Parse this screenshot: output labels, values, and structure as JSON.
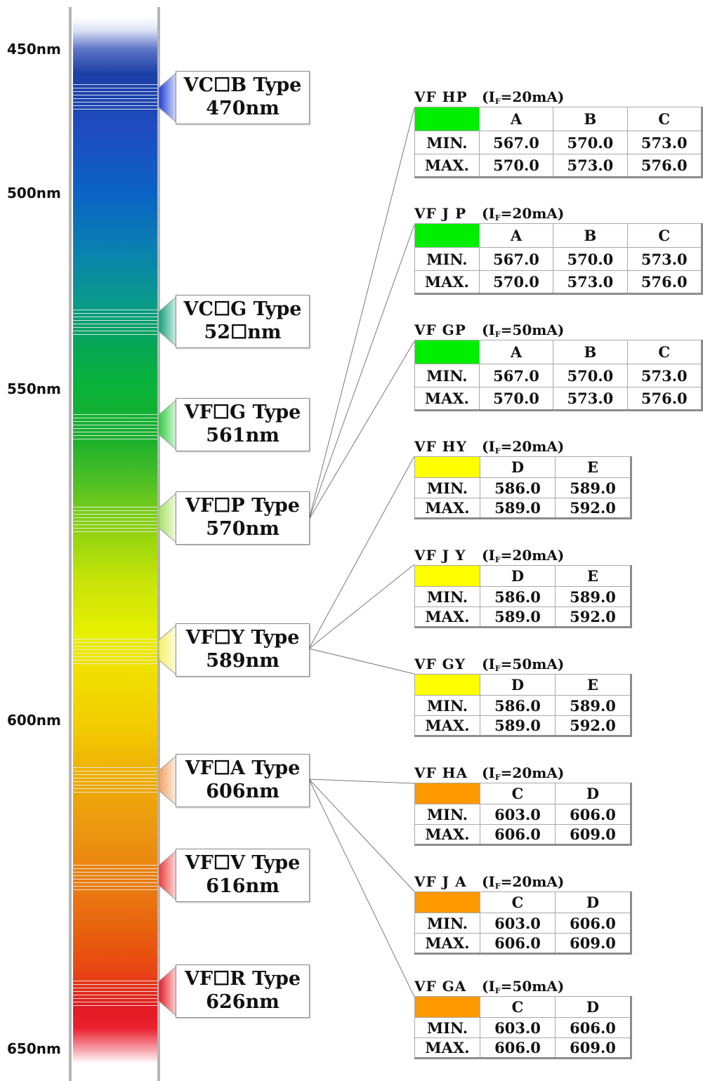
{
  "scale_labels": [
    "450nm",
    "500nm",
    "550nm",
    "600nm",
    "650nm"
  ],
  "types": [
    {
      "line1": "VC☐B Type",
      "line2": "470nm",
      "color": "#1f3fd8"
    },
    {
      "line1": "VC☐G Type",
      "line2": "52☐nm",
      "color": "#10a07a"
    },
    {
      "line1": "VF☐G Type",
      "line2": "561nm",
      "color": "#2ecc40"
    },
    {
      "line1": "VF☐P Type",
      "line2": "570nm",
      "color": "#a8e060"
    },
    {
      "line1": "VF☐Y Type",
      "line2": "589nm",
      "color": "#f6f060"
    },
    {
      "line1": "VF☐A Type",
      "line2": "606nm",
      "color": "#f2a060"
    },
    {
      "line1": "VF☐V Type",
      "line2": "616nm",
      "color": "#ea3a3a"
    },
    {
      "line1": "VF☐R Type",
      "line2": "626nm",
      "color": "#e21a22"
    }
  ],
  "groups": [
    {
      "device": "VF HP",
      "cond_prefix": "(I",
      "cond_sub": "F",
      "cond_suffix": "=20mA)",
      "swatch": "#00ee00",
      "bins": [
        "A",
        "B",
        "C"
      ],
      "min_label": "MIN.",
      "max_label": "MAX.",
      "min": [
        "567.0",
        "570.0",
        "573.0"
      ],
      "max": [
        "570.0",
        "573.0",
        "576.0"
      ]
    },
    {
      "device": "VF J P",
      "cond_prefix": "(I",
      "cond_sub": "F",
      "cond_suffix": "=20mA)",
      "swatch": "#00ee00",
      "bins": [
        "A",
        "B",
        "C"
      ],
      "min_label": "MIN.",
      "max_label": "MAX.",
      "min": [
        "567.0",
        "570.0",
        "573.0"
      ],
      "max": [
        "570.0",
        "573.0",
        "576.0"
      ]
    },
    {
      "device": "VF GP",
      "cond_prefix": "(I",
      "cond_sub": "F",
      "cond_suffix": "=50mA)",
      "swatch": "#00ee00",
      "bins": [
        "A",
        "B",
        "C"
      ],
      "min_label": "MIN.",
      "max_label": "MAX.",
      "min": [
        "567.0",
        "570.0",
        "573.0"
      ],
      "max": [
        "570.0",
        "573.0",
        "576.0"
      ]
    },
    {
      "device": "VF HY",
      "cond_prefix": "(I",
      "cond_sub": "F",
      "cond_suffix": "=20mA)",
      "swatch": "#ffff00",
      "bins": [
        "D",
        "E"
      ],
      "min_label": "MIN.",
      "max_label": "MAX.",
      "min": [
        "586.0",
        "589.0"
      ],
      "max": [
        "589.0",
        "592.0"
      ]
    },
    {
      "device": "VF J Y",
      "cond_prefix": "(I",
      "cond_sub": "F",
      "cond_suffix": "=20mA)",
      "swatch": "#ffff00",
      "bins": [
        "D",
        "E"
      ],
      "min_label": "MIN.",
      "max_label": "MAX.",
      "min": [
        "586.0",
        "589.0"
      ],
      "max": [
        "589.0",
        "592.0"
      ]
    },
    {
      "device": "VF GY",
      "cond_prefix": "(I",
      "cond_sub": "F",
      "cond_suffix": "=50mA)",
      "swatch": "#ffff00",
      "bins": [
        "D",
        "E"
      ],
      "min_label": "MIN.",
      "max_label": "MAX.",
      "min": [
        "586.0",
        "589.0"
      ],
      "max": [
        "589.0",
        "592.0"
      ]
    },
    {
      "device": "VF HA",
      "cond_prefix": "(I",
      "cond_sub": "F",
      "cond_suffix": "=20mA)",
      "swatch": "#ff9900",
      "bins": [
        "C",
        "D"
      ],
      "min_label": "MIN.",
      "max_label": "MAX.",
      "min": [
        "603.0",
        "606.0"
      ],
      "max": [
        "606.0",
        "609.0"
      ]
    },
    {
      "device": "VF J A",
      "cond_prefix": "(I",
      "cond_sub": "F",
      "cond_suffix": "=20mA)",
      "swatch": "#ff9900",
      "bins": [
        "C",
        "D"
      ],
      "min_label": "MIN.",
      "max_label": "MAX.",
      "min": [
        "603.0",
        "606.0"
      ],
      "max": [
        "606.0",
        "609.0"
      ]
    },
    {
      "device": "VF GA",
      "cond_prefix": "(I",
      "cond_sub": "F",
      "cond_suffix": "=50mA)",
      "swatch": "#ff9900",
      "bins": [
        "C",
        "D"
      ],
      "min_label": "MIN.",
      "max_label": "MAX.",
      "min": [
        "603.0",
        "606.0"
      ],
      "max": [
        "606.0",
        "609.0"
      ]
    }
  ]
}
